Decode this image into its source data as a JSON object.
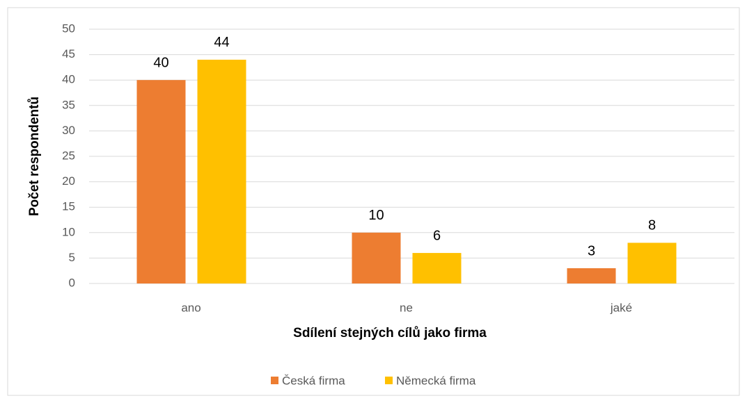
{
  "chart_data": {
    "type": "bar",
    "x_label": "Sdílení stejných cílů jako firma",
    "y_label": "Počet respondentů",
    "categories": [
      "ano",
      "ne",
      "jaké"
    ],
    "series": [
      {
        "name": "Česká firma",
        "color": "#ed7d31",
        "values": [
          40,
          10,
          3
        ]
      },
      {
        "name": "Německá firma",
        "color": "#ffc000",
        "values": [
          44,
          6,
          8
        ]
      }
    ],
    "ylim": [
      0,
      50
    ],
    "yticks": [
      0,
      5,
      10,
      15,
      20,
      25,
      30,
      35,
      40,
      45,
      50
    ],
    "grid": true,
    "legend": "bottom"
  }
}
